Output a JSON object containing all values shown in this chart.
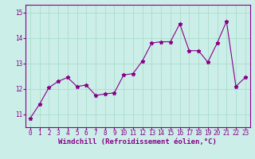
{
  "x": [
    0,
    1,
    2,
    3,
    4,
    5,
    6,
    7,
    8,
    9,
    10,
    11,
    12,
    13,
    14,
    15,
    16,
    17,
    18,
    19,
    20,
    21,
    22,
    23
  ],
  "y": [
    10.85,
    11.4,
    12.05,
    12.3,
    12.45,
    12.1,
    12.15,
    11.75,
    11.8,
    11.85,
    12.55,
    12.6,
    13.1,
    13.8,
    13.85,
    13.85,
    14.55,
    13.5,
    13.5,
    13.05,
    13.8,
    14.65,
    12.1,
    12.45
  ],
  "line_color": "#880088",
  "marker": "*",
  "marker_size": 3.5,
  "bg_color": "#cceee8",
  "grid_color": "#aaddcc",
  "xlabel": "Windchill (Refroidissement éolien,°C)",
  "xlim": [
    -0.5,
    23.5
  ],
  "ylim": [
    10.5,
    15.3
  ],
  "yticks": [
    11,
    12,
    13,
    14,
    15
  ],
  "xticks": [
    0,
    1,
    2,
    3,
    4,
    5,
    6,
    7,
    8,
    9,
    10,
    11,
    12,
    13,
    14,
    15,
    16,
    17,
    18,
    19,
    20,
    21,
    22,
    23
  ],
  "tick_color": "#880088",
  "tick_fontsize": 5.5,
  "xlabel_fontsize": 6.5,
  "spine_color": "#880088"
}
